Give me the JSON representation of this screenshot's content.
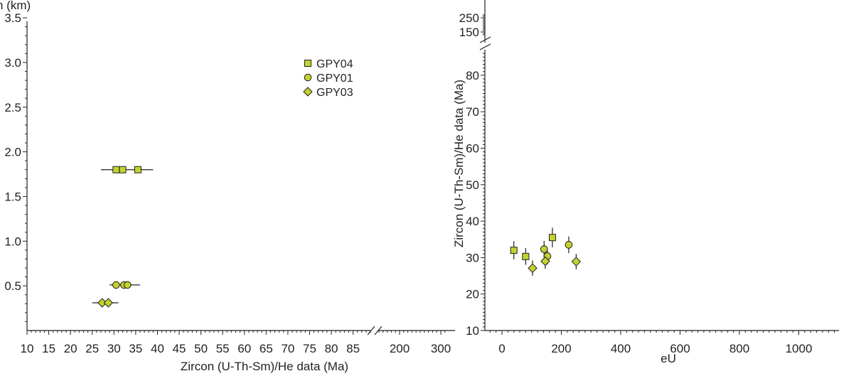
{
  "marker_fill": "#c2d32f",
  "marker_stroke": "#231f20",
  "axis_color": "#231f20",
  "chart_data": [
    {
      "type": "scatter",
      "ylabel_partial": "h (km)",
      "xlabel": "Zircon (U-Th-Sm)/He data (Ma)",
      "x_tick_labels_low": [
        "10",
        "15",
        "20",
        "25",
        "30",
        "35",
        "40",
        "45",
        "50",
        "55",
        "60",
        "65",
        "70",
        "75",
        "80",
        "85"
      ],
      "x_tick_labels_high": [
        "200",
        "300"
      ],
      "y_tick_labels": [
        "0.5",
        "1.0",
        "1.5",
        "2.0",
        "2.5",
        "3.0",
        "3.5"
      ],
      "xlim_low": [
        10,
        89
      ],
      "xlim_high": [
        150,
        310
      ],
      "ylim": [
        0,
        3.5
      ],
      "legend_position": "top-right",
      "series": [
        {
          "name": "GPY04",
          "marker": "square",
          "y": 1.8,
          "x": [
            30.5,
            32,
            35.5
          ],
          "xerr_range": [
            27,
            39
          ]
        },
        {
          "name": "GPY01",
          "marker": "circle",
          "y": 0.51,
          "x": [
            30.5,
            32.3,
            33.1
          ],
          "xerr_range": [
            29,
            36
          ]
        },
        {
          "name": "GPY03",
          "marker": "diamond",
          "y": 0.31,
          "x": [
            27.3,
            28.7
          ],
          "xerr_range": [
            25,
            31
          ]
        }
      ]
    },
    {
      "type": "scatter",
      "xlabel": "eU",
      "ylabel": "Zircon (U-Th-Sm)/He data (Ma)",
      "x_tick_labels": [
        "0",
        "200",
        "400",
        "600",
        "800",
        "1000"
      ],
      "y_tick_labels_low": [
        "10",
        "20",
        "30",
        "40",
        "50",
        "60",
        "70",
        "80"
      ],
      "y_tick_labels_high": [
        "150",
        "250"
      ],
      "xlim": [
        -60,
        1180
      ],
      "ylim_low": [
        10,
        90
      ],
      "ylim_high": [
        120,
        280
      ],
      "points": [
        {
          "series": "GPY04",
          "marker": "square",
          "x": 40,
          "y": 32,
          "err": 2.5
        },
        {
          "series": "GPY04",
          "marker": "square",
          "x": 80,
          "y": 30.3,
          "err": 2.3
        },
        {
          "series": "GPY04",
          "marker": "square",
          "x": 170,
          "y": 35.5,
          "err": 2.7
        },
        {
          "series": "GPY01",
          "marker": "circle",
          "x": 142,
          "y": 32.3,
          "err": 2.3
        },
        {
          "series": "GPY01",
          "marker": "circle",
          "x": 153,
          "y": 30.4,
          "err": 2.3
        },
        {
          "series": "GPY01",
          "marker": "circle",
          "x": 225,
          "y": 33.5,
          "err": 2.3
        },
        {
          "series": "GPY03",
          "marker": "diamond",
          "x": 103,
          "y": 27.1,
          "err": 2.1
        },
        {
          "series": "GPY03",
          "marker": "diamond",
          "x": 146,
          "y": 29,
          "err": 2.1
        },
        {
          "series": "GPY03",
          "marker": "diamond",
          "x": 250,
          "y": 28.9,
          "err": 2.1
        }
      ]
    }
  ]
}
